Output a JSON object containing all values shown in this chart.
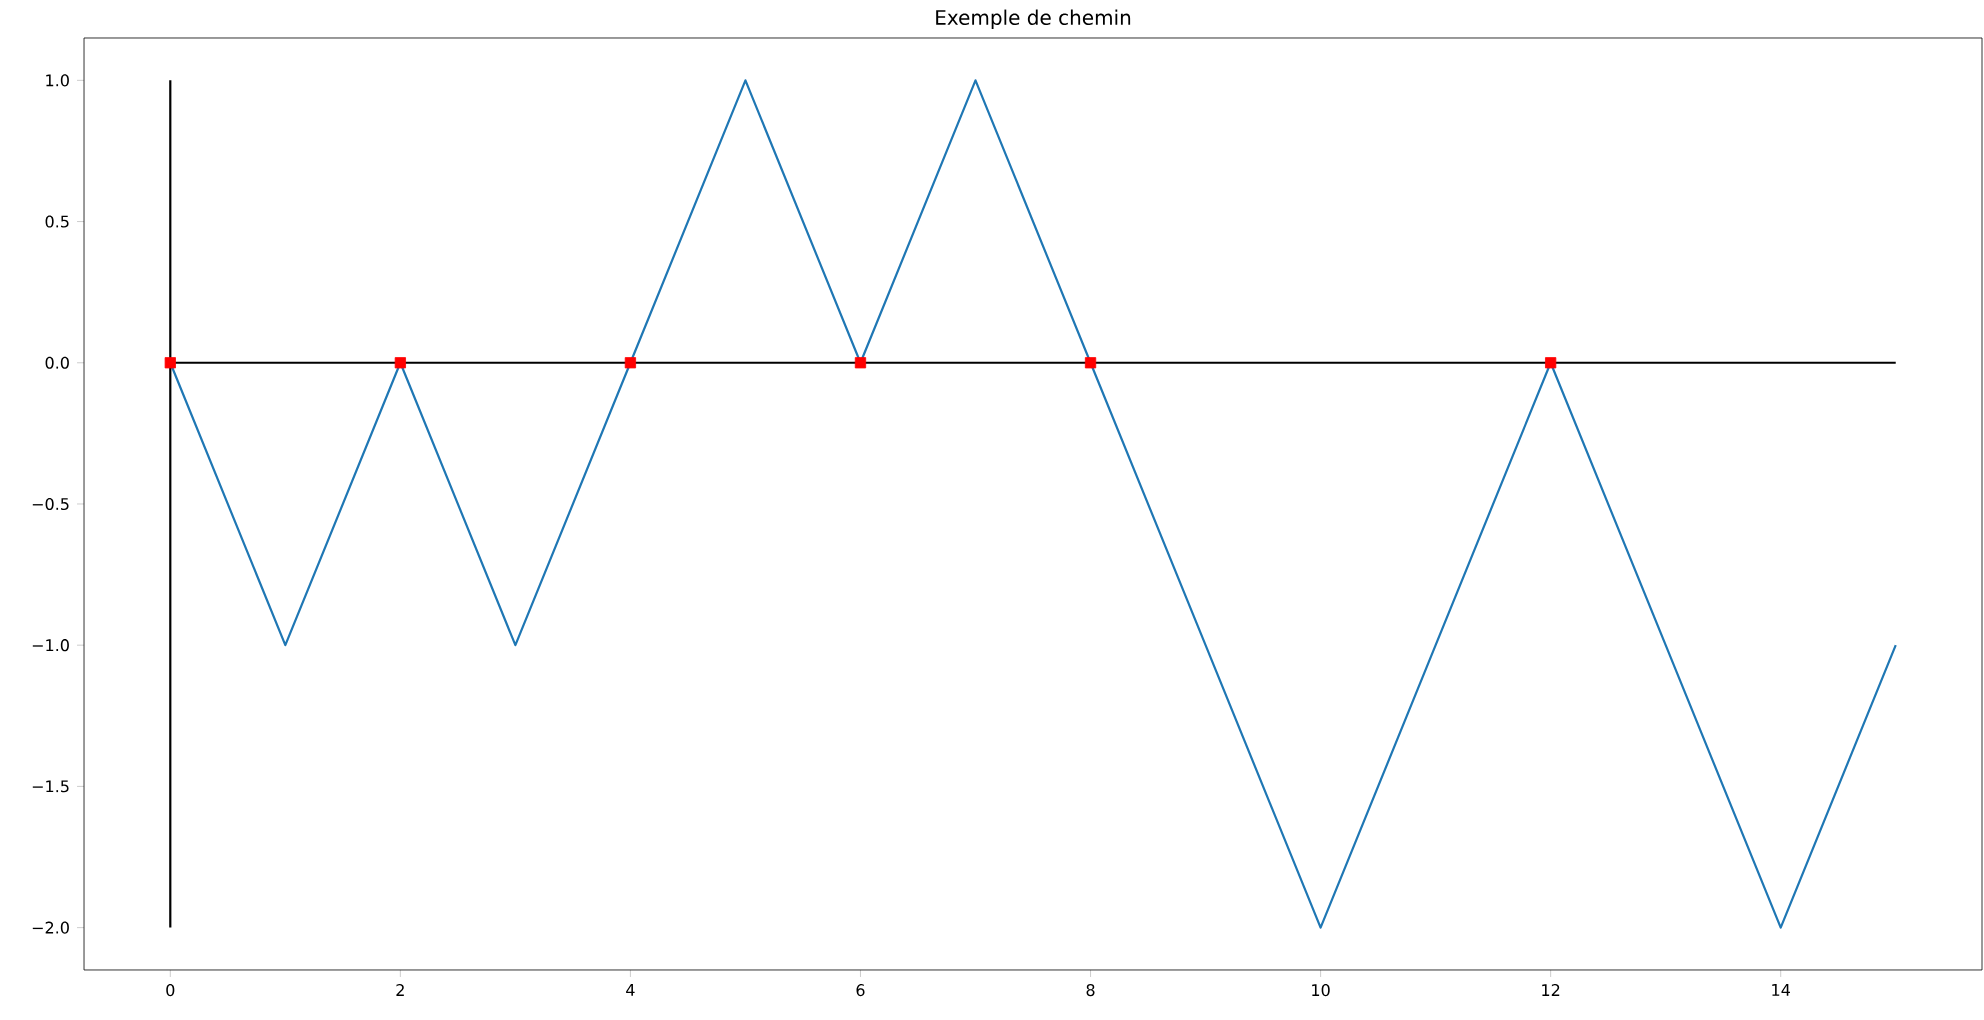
{
  "chart_data": {
    "type": "line",
    "title": "Exemple de chemin",
    "x": [
      0,
      1,
      2,
      3,
      4,
      5,
      6,
      7,
      8,
      9,
      10,
      11,
      12,
      13,
      14,
      15
    ],
    "series": [
      {
        "color": "#1f77b4",
        "values": [
          0,
          -1,
          0,
          -1,
          0,
          1,
          0,
          1,
          0,
          -1,
          -2,
          -1,
          0,
          -1,
          -2,
          -1
        ]
      },
      {
        "color": "#000000",
        "x": [
          0,
          15
        ],
        "values": [
          0,
          0
        ]
      },
      {
        "color": "#000000",
        "x": [
          0,
          0
        ],
        "values": [
          -2,
          1
        ]
      },
      {
        "type": "scatter",
        "marker": "square",
        "color": "#ff0000",
        "x": [
          0,
          2,
          4,
          6,
          8,
          12
        ],
        "values": [
          0,
          0,
          0,
          0,
          0,
          0
        ]
      }
    ],
    "xlim": [
      -0.75,
      15.75
    ],
    "ylim": [
      -2.15,
      1.15
    ],
    "xticks": [
      0,
      2,
      4,
      6,
      8,
      10,
      12,
      14
    ],
    "yticks": [
      {
        "value": -2,
        "label": "−2.0"
      },
      {
        "value": -1.5,
        "label": "−1.5"
      },
      {
        "value": -1,
        "label": "−1.0"
      },
      {
        "value": -0.5,
        "label": "−0.5"
      },
      {
        "value": 0,
        "label": "0.0"
      },
      {
        "value": 0.5,
        "label": "0.5"
      },
      {
        "value": 1,
        "label": "1.0"
      }
    ]
  }
}
